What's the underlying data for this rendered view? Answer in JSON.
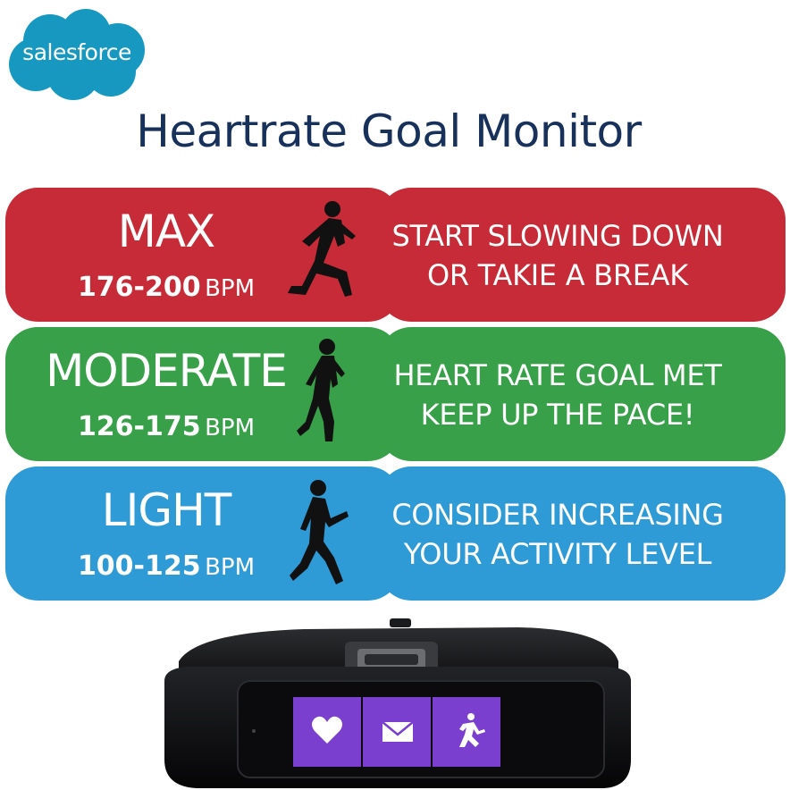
{
  "brand": {
    "name": "salesforce",
    "cloud_color": "#1798c1"
  },
  "title": "Heartrate Goal Monitor",
  "zones": [
    {
      "name": "MAX",
      "range": "176-200",
      "unit": "BPM",
      "message_line1": "START SLOWING DOWN",
      "message_line2": "OR TAKIE A BREAK",
      "color": "#c72b37"
    },
    {
      "name": "MODERATE",
      "range": "126-175",
      "unit": "BPM",
      "message_line1": "HEART RATE GOAL MET",
      "message_line2": "KEEP UP THE PACE!",
      "color": "#38a049"
    },
    {
      "name": "LIGHT",
      "range": "100-125",
      "unit": "BPM",
      "message_line1": "CONSIDER INCREASING",
      "message_line2": "YOUR ACTIVITY LEVEL",
      "color": "#2e9ad6"
    }
  ],
  "device": {
    "tiles": [
      {
        "icon": "heart-icon"
      },
      {
        "icon": "mail-icon"
      },
      {
        "icon": "running-icon"
      }
    ],
    "screen_color": "#7b3fd0"
  }
}
